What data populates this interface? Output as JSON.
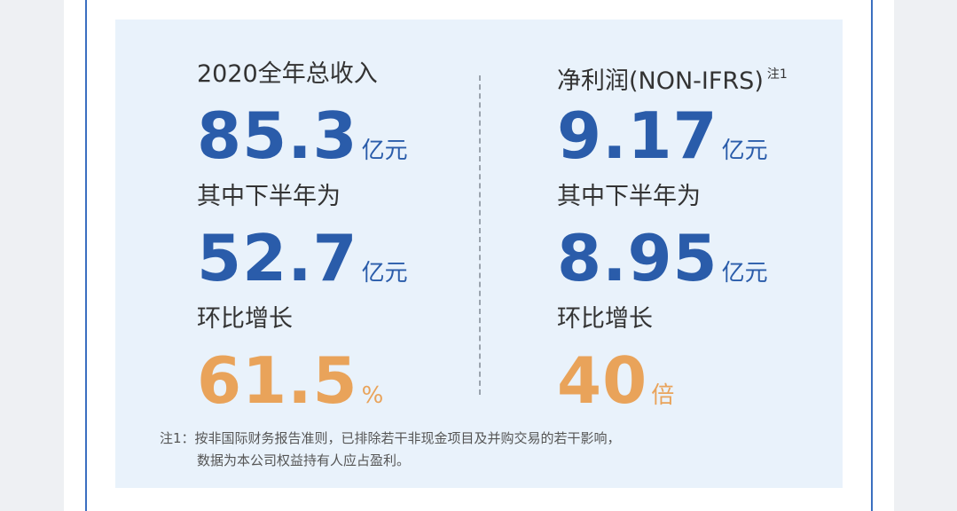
{
  "left": {
    "label": "2020全年总收入",
    "value": "85.3",
    "unit": "亿元",
    "half_label": "其中下半年为",
    "half_value": "52.7",
    "half_unit": "亿元",
    "growth_label": "环比增长",
    "growth_value": "61.5",
    "growth_unit": "%"
  },
  "right": {
    "label": "净利润(NON-IFRS)",
    "note_mark": "注1",
    "value": "9.17",
    "unit": "亿元",
    "half_label": "其中下半年为",
    "half_value": "8.95",
    "half_unit": "亿元",
    "growth_label": "环比增长",
    "growth_value": "40",
    "growth_unit": "倍"
  },
  "footnote": [
    "注1：按非国际财务报告准则，已排除若干非现金项目及并购交易的若干影响，",
    "数据为本公司权益持有人应占盈利。"
  ]
}
